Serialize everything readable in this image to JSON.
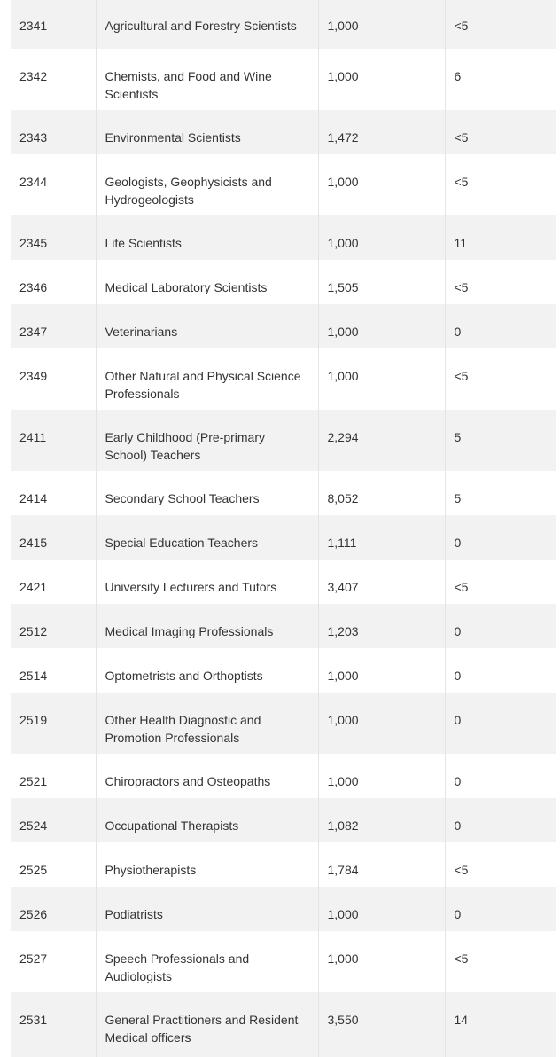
{
  "table": {
    "rows": [
      {
        "code": "2341",
        "occupation": "Agricultural and Forestry Scientists",
        "invitations": "1,000",
        "count": "<5"
      },
      {
        "code": "2342",
        "occupation": "Chemists, and Food and Wine Scientists",
        "invitations": "1,000",
        "count": "6"
      },
      {
        "code": "2343",
        "occupation": "Environmental Scientists",
        "invitations": "1,472",
        "count": "<5"
      },
      {
        "code": "2344",
        "occupation": "Geologists, Geophysicists and Hydrogeologists",
        "invitations": "1,000",
        "count": "<5"
      },
      {
        "code": "2345",
        "occupation": "Life Scientists",
        "invitations": "1,000",
        "count": "11"
      },
      {
        "code": "2346",
        "occupation": "Medical Laboratory Scientists",
        "invitations": "1,505",
        "count": "<5"
      },
      {
        "code": "2347",
        "occupation": "Veterinarians",
        "invitations": "1,000",
        "count": "0"
      },
      {
        "code": "2349",
        "occupation": "Other Natural and Physical Science Professionals",
        "invitations": "1,000",
        "count": "<5"
      },
      {
        "code": "2411",
        "occupation": "Early Childhood (Pre-primary School) Teachers",
        "invitations": "2,294",
        "count": "5"
      },
      {
        "code": "2414",
        "occupation": "Secondary School Teachers",
        "invitations": "8,052",
        "count": "5"
      },
      {
        "code": "2415",
        "occupation": "Special Education Teachers",
        "invitations": "1,111",
        "count": "0"
      },
      {
        "code": "2421",
        "occupation": "University Lecturers and Tutors",
        "invitations": "3,407",
        "count": "<5"
      },
      {
        "code": "2512",
        "occupation": "Medical Imaging Professionals",
        "invitations": "1,203",
        "count": "0"
      },
      {
        "code": "2514",
        "occupation": "Optometrists and Orthoptists",
        "invitations": "1,000",
        "count": "0"
      },
      {
        "code": "2519",
        "occupation": "Other Health Diagnostic and Promotion Professionals",
        "invitations": "1,000",
        "count": "0"
      },
      {
        "code": "2521",
        "occupation": "Chiropractors and Osteopaths",
        "invitations": "1,000",
        "count": "0"
      },
      {
        "code": "2524",
        "occupation": "Occupational Therapists",
        "invitations": "1,082",
        "count": "0"
      },
      {
        "code": "2525",
        "occupation": "Physiotherapists",
        "invitations": "1,784",
        "count": "<5"
      },
      {
        "code": "2526",
        "occupation": "Podiatrists",
        "invitations": "1,000",
        "count": "0"
      },
      {
        "code": "2527",
        "occupation": "Speech Professionals and Audiologists",
        "invitations": "1,000",
        "count": "<5"
      },
      {
        "code": "2531",
        "occupation": "General Practitioners and Resident Medical officers",
        "invitations": "3,550",
        "count": "14"
      }
    ]
  }
}
